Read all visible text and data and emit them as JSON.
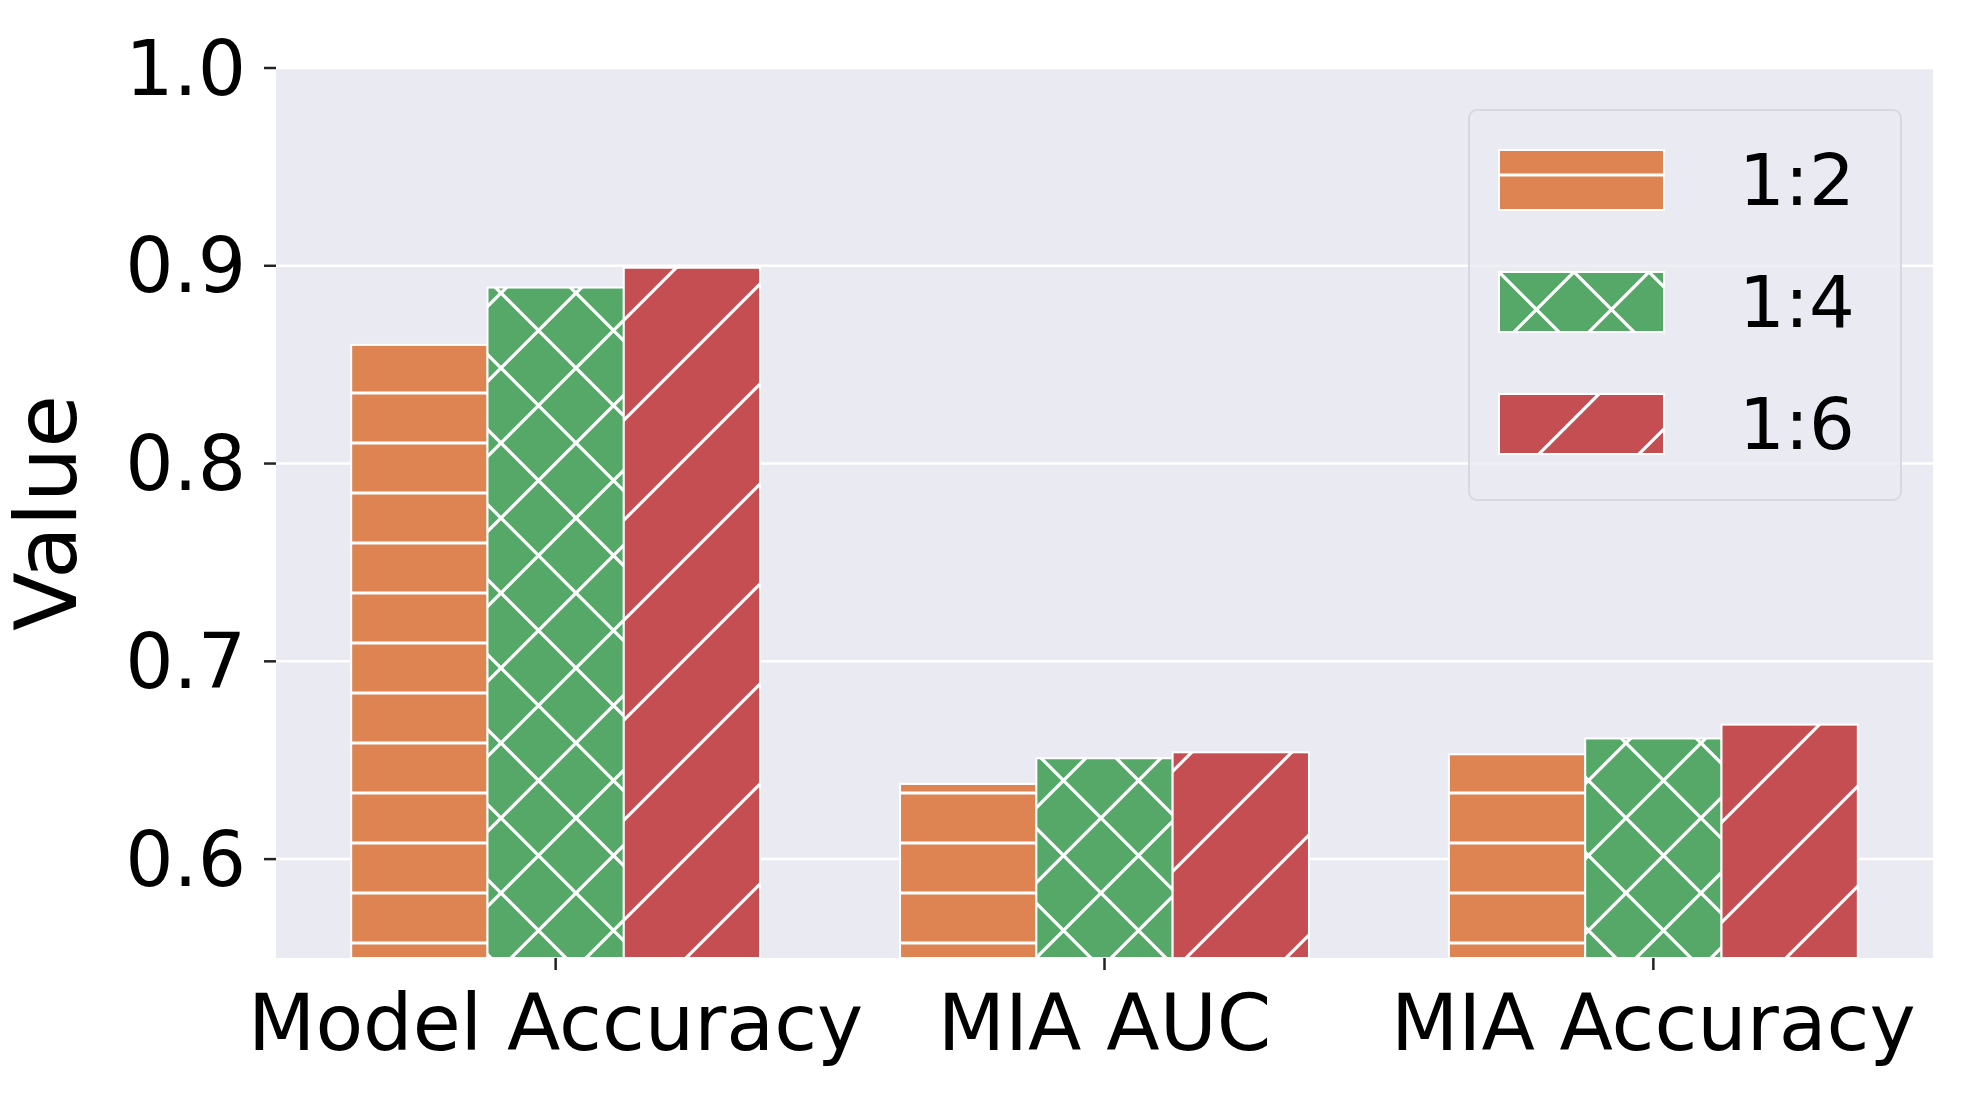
{
  "chart_data": {
    "type": "bar",
    "ylabel": "Value",
    "categories": [
      "Model Accuracy",
      "MIA AUC",
      "MIA Accuracy"
    ],
    "series": [
      {
        "name": "1:2",
        "color": "#dd8452",
        "values": [
          0.86,
          0.638,
          0.653
        ]
      },
      {
        "name": "1:4",
        "color": "#55a868",
        "values": [
          0.889,
          0.651,
          0.661
        ]
      },
      {
        "name": "1:6",
        "color": "#c44e52",
        "values": [
          0.899,
          0.654,
          0.668
        ]
      }
    ],
    "ylim": [
      0.55,
      1.0
    ],
    "yticks": [
      0.6,
      0.7,
      0.8,
      0.9,
      {
        "value": 1.0,
        "label": "1.0"
      }
    ],
    "grid": "y",
    "legend": "top right"
  }
}
